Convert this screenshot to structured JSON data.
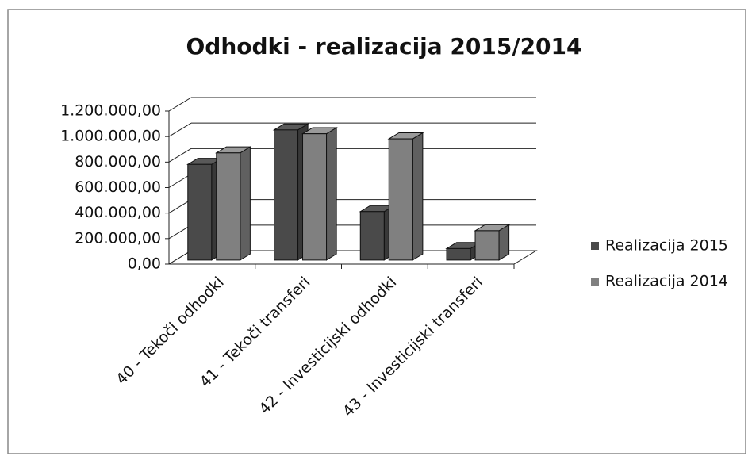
{
  "chart_data": {
    "type": "bar3d",
    "title": "Odhodki - realizacija 2015/2014",
    "categories": [
      "40 - Tekoči odhodki",
      "41 - Tekoči transferi",
      "42 - Investicijski odhodki",
      "43 - Investicijski transferi"
    ],
    "series": [
      {
        "name": "Realizacija 2015",
        "color": "#4a4a4a",
        "values": [
          750000,
          1020000,
          380000,
          90000
        ]
      },
      {
        "name": "Realizacija 2014",
        "color": "#808080",
        "values": [
          840000,
          990000,
          950000,
          230000
        ]
      }
    ],
    "ylim": [
      0,
      1200000
    ],
    "yticks": [
      {
        "value": 0,
        "label": "0,00"
      },
      {
        "value": 200000,
        "label": "200.000,00"
      },
      {
        "value": 400000,
        "label": "400.000,00"
      },
      {
        "value": 600000,
        "label": "600.000,00"
      },
      {
        "value": 800000,
        "label": "800.000,00"
      },
      {
        "value": 1000000,
        "label": "1.000.000,00"
      },
      {
        "value": 1200000,
        "label": "1.200.000,00"
      }
    ],
    "grid": true,
    "legend": "right"
  }
}
